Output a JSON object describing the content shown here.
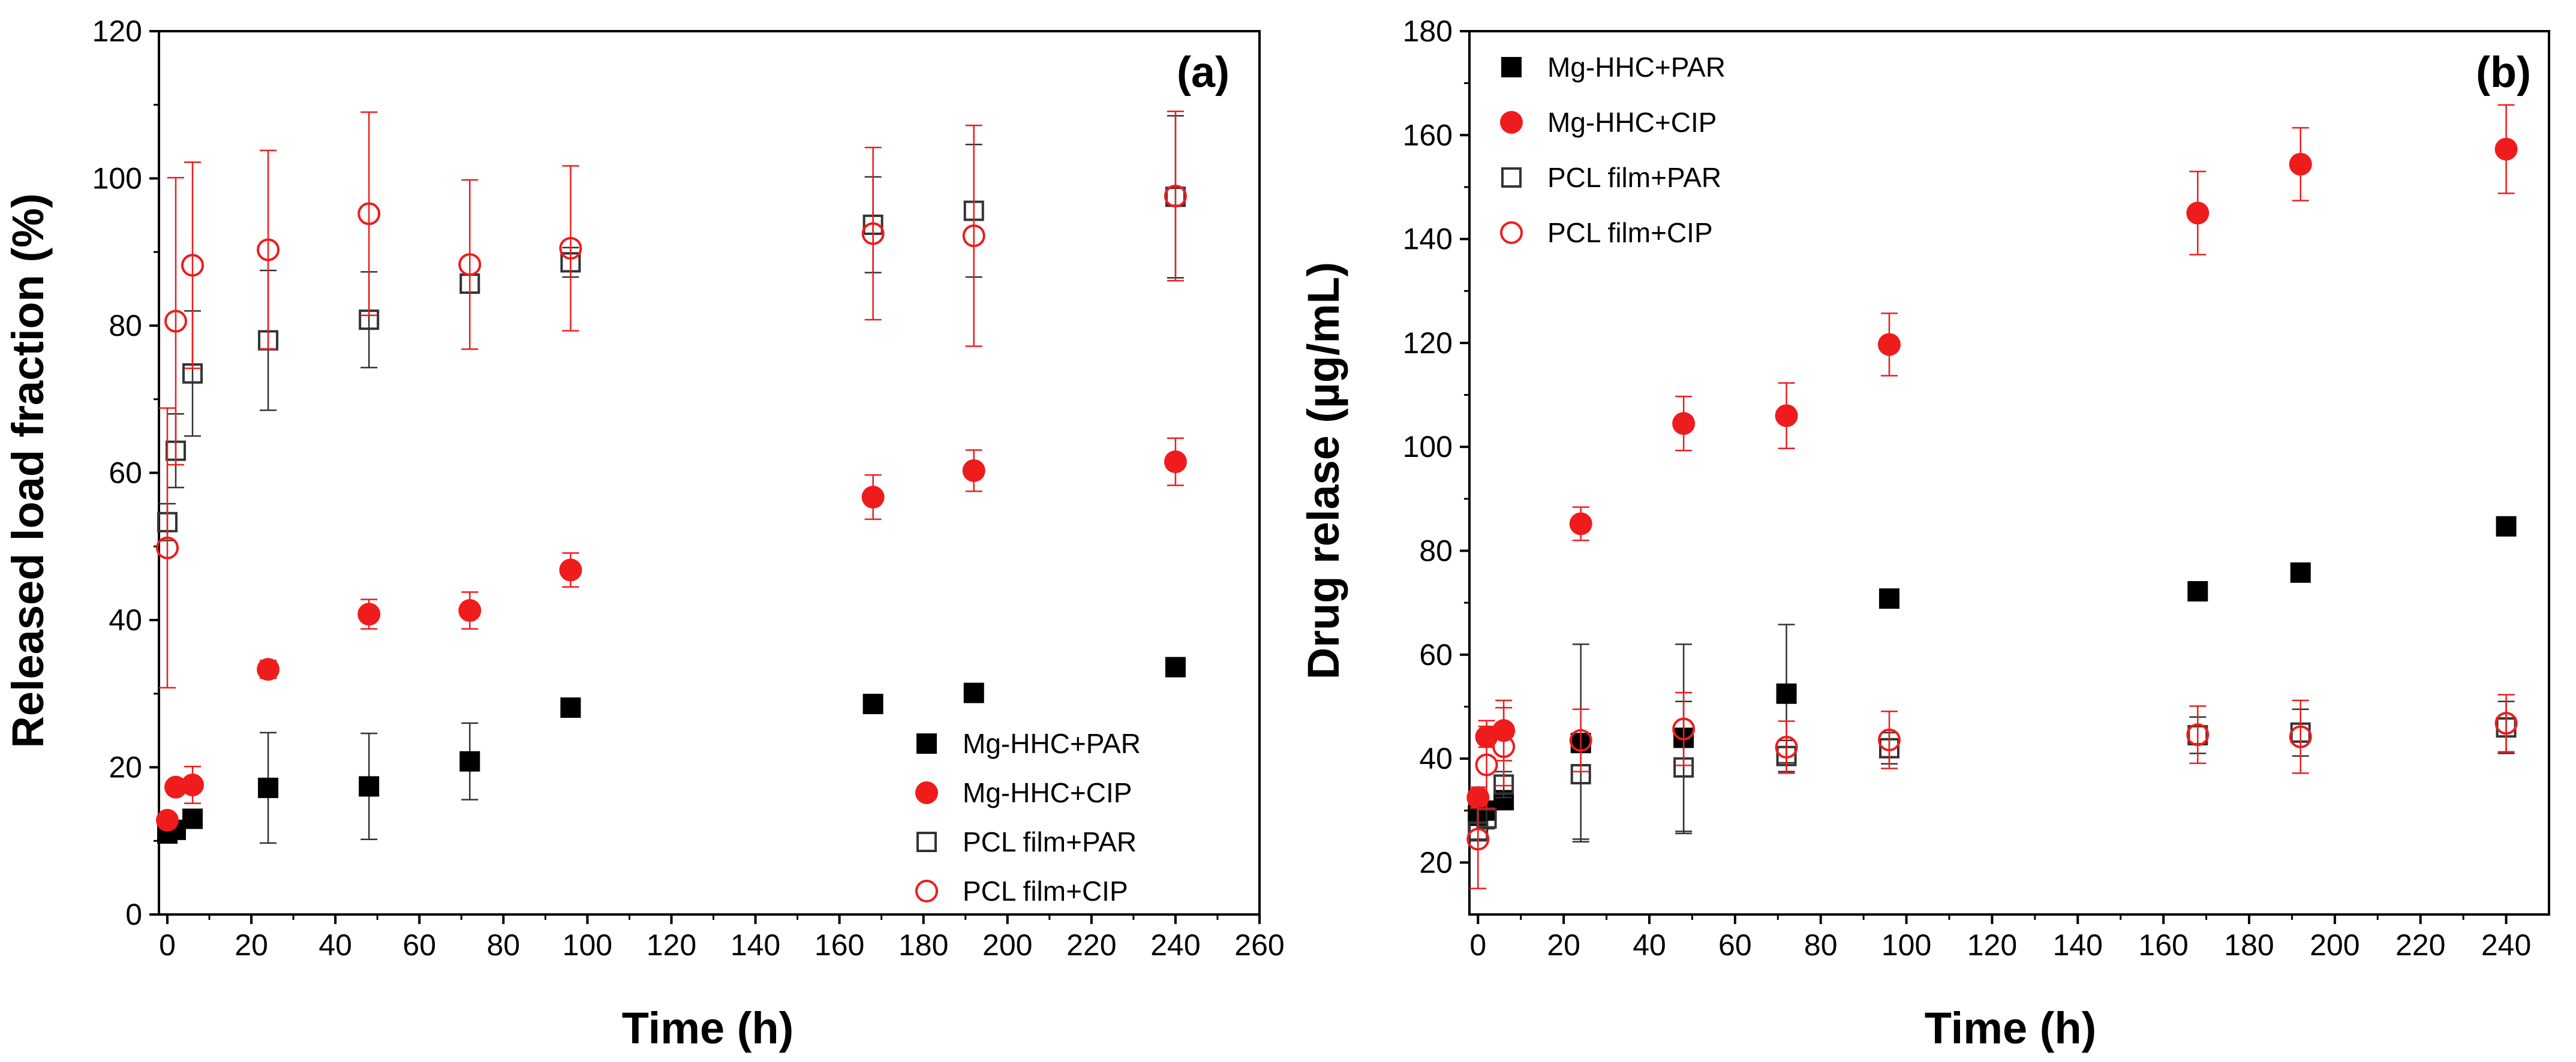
{
  "chart_data": [
    {
      "type": "scatter",
      "panel_label": "(a)",
      "xlabel": "Time (h)",
      "ylabel": "Released load fraction (%)",
      "xlim": [
        -2,
        260
      ],
      "ylim": [
        0,
        120
      ],
      "xticks": [
        0,
        20,
        40,
        60,
        80,
        100,
        120,
        140,
        160,
        180,
        200,
        220,
        240,
        260
      ],
      "yticks": [
        0,
        20,
        40,
        60,
        80,
        100,
        120
      ],
      "grid": false,
      "legend_position": "bottom-right",
      "series": [
        {
          "name": "Mg-HHC+PAR",
          "marker": "square-filled",
          "color": "#000000",
          "x": [
            0,
            2,
            6,
            24,
            48,
            72,
            96,
            168,
            192,
            240
          ],
          "y": [
            11,
            11.5,
            13,
            17.2,
            17.4,
            20.8,
            28.1,
            28.6,
            30.1,
            33.6
          ],
          "err": [
            0,
            0,
            0,
            7.5,
            7.2,
            5.2,
            0,
            0,
            0,
            0
          ]
        },
        {
          "name": "Mg-HHC+CIP",
          "marker": "circle-filled",
          "color": "#ee1c1c",
          "x": [
            0,
            2,
            6,
            24,
            48,
            72,
            96,
            168,
            192,
            240
          ],
          "y": [
            12.8,
            17.3,
            17.6,
            33.3,
            40.8,
            41.3,
            46.8,
            56.7,
            60.3,
            61.5
          ],
          "err": [
            0.8,
            0.8,
            2.5,
            1.2,
            2.0,
            2.5,
            2.3,
            3.0,
            2.8,
            3.2
          ]
        },
        {
          "name": "PCL film+PAR",
          "marker": "square-open",
          "color": "#333333",
          "x": [
            0,
            2,
            6,
            24,
            48,
            72,
            96,
            168,
            192,
            240
          ],
          "y": [
            53.3,
            63,
            73.5,
            78,
            80.8,
            85.7,
            88.6,
            93.7,
            95.6,
            97.5
          ],
          "err": [
            2.5,
            5.0,
            8.5,
            9.5,
            6.5,
            0,
            2.0,
            6.5,
            9.0,
            11.0
          ]
        },
        {
          "name": "PCL film+CIP",
          "marker": "circle-open",
          "color": "#ee1c1c",
          "x": [
            0,
            2,
            6,
            24,
            48,
            72,
            96,
            168,
            192,
            240
          ],
          "y": [
            49.8,
            80.6,
            88.2,
            90.3,
            95.2,
            88.3,
            90.5,
            92.5,
            92.2,
            97.6
          ],
          "err": [
            19,
            19.5,
            14.0,
            13.5,
            13.8,
            11.5,
            11.2,
            11.7,
            15.0,
            11.5
          ]
        }
      ]
    },
    {
      "type": "scatter",
      "panel_label": "(b)",
      "xlabel": "Time (h)",
      "ylabel": "Drug relase (µg/mL)",
      "xlim": [
        -2,
        250
      ],
      "ylim": [
        10,
        180
      ],
      "xticks": [
        0,
        20,
        40,
        60,
        80,
        100,
        120,
        140,
        160,
        180,
        200,
        220,
        240
      ],
      "yticks": [
        20,
        40,
        60,
        80,
        100,
        120,
        140,
        160,
        180
      ],
      "grid": false,
      "legend_position": "top-left",
      "series": [
        {
          "name": "Mg-HHC+PAR",
          "marker": "square-filled",
          "color": "#000000",
          "x": [
            0,
            2,
            6,
            24,
            48,
            72,
            96,
            168,
            192,
            240
          ],
          "y": [
            29,
            30,
            32,
            43,
            44,
            52.5,
            70.8,
            72.2,
            75.8,
            84.7
          ],
          "err": [
            0,
            0,
            0,
            19,
            18,
            13.3,
            0,
            0,
            0,
            0
          ]
        },
        {
          "name": "Mg-HHC+CIP",
          "marker": "circle-filled",
          "color": "#ee1c1c",
          "x": [
            0,
            2,
            6,
            24,
            48,
            72,
            96,
            168,
            192,
            240
          ],
          "y": [
            32.5,
            44.2,
            45.4,
            85.2,
            104.5,
            106,
            119.7,
            145,
            154.4,
            157.3
          ],
          "err": [
            2,
            2,
            5.8,
            3.2,
            5.2,
            6.3,
            6.0,
            8.0,
            7.0,
            8.5
          ]
        },
        {
          "name": "PCL film+PAR",
          "marker": "square-open",
          "color": "#333333",
          "x": [
            0,
            2,
            6,
            24,
            48,
            72,
            96,
            168,
            192,
            240
          ],
          "y": [
            26,
            28.5,
            35,
            37,
            38.3,
            40.5,
            42,
            44.5,
            45,
            46
          ],
          "err": [
            1.5,
            2,
            2.5,
            12.5,
            12.7,
            3,
            3,
            3.5,
            4.5,
            5
          ]
        },
        {
          "name": "PCL film+CIP",
          "marker": "circle-open",
          "color": "#ee1c1c",
          "x": [
            0,
            2,
            6,
            24,
            48,
            72,
            96,
            168,
            192,
            240
          ],
          "y": [
            24.5,
            38.8,
            42.3,
            43.5,
            45.7,
            42.2,
            43.6,
            44.6,
            44.2,
            46.8
          ],
          "err": [
            9.5,
            8.5,
            7.5,
            6,
            7,
            5,
            5.5,
            5.5,
            7,
            5.5
          ]
        }
      ]
    }
  ]
}
